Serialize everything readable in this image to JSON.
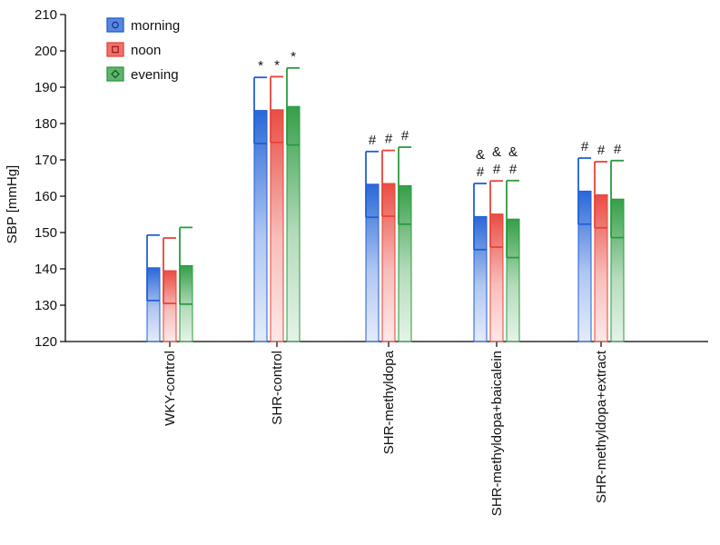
{
  "chart_data": {
    "type": "bar",
    "title": "",
    "xlabel": "",
    "ylabel": "SBP [mmHg]",
    "ylim": [
      120,
      210
    ],
    "yticks": [
      120,
      130,
      140,
      150,
      160,
      170,
      180,
      190,
      200,
      210
    ],
    "categories": [
      "WKY-control",
      "SHR-control",
      "SHR-methyldopa",
      "SHR-methyldopa+baicalein",
      "SHR-methyldopa+extract"
    ],
    "series": [
      {
        "name": "morning",
        "color": "#1f5fd6",
        "marker": "circle",
        "values": [
          140.3,
          183.6,
          163.3,
          154.4,
          161.4
        ],
        "err_low": [
          131.3,
          174.5,
          154.2,
          145.3,
          152.3
        ],
        "err_high": [
          149.3,
          192.7,
          172.3,
          163.5,
          170.5
        ]
      },
      {
        "name": "noon",
        "color": "#e8433a",
        "marker": "square",
        "values": [
          139.5,
          183.8,
          163.5,
          155.1,
          160.4
        ],
        "err_low": [
          130.5,
          174.8,
          154.5,
          146.0,
          151.3
        ],
        "err_high": [
          148.5,
          192.9,
          172.6,
          164.2,
          169.5
        ]
      },
      {
        "name": "evening",
        "color": "#2a9a3e",
        "marker": "diamond",
        "values": [
          140.9,
          184.7,
          162.9,
          153.7,
          159.2
        ],
        "err_low": [
          130.3,
          174.1,
          152.3,
          143.1,
          148.6
        ],
        "err_high": [
          151.4,
          195.3,
          173.5,
          164.3,
          169.8
        ]
      }
    ],
    "annotations": [
      {
        "category": 1,
        "series": 0,
        "lines": [
          "*"
        ]
      },
      {
        "category": 1,
        "series": 1,
        "lines": [
          "*"
        ]
      },
      {
        "category": 1,
        "series": 2,
        "lines": [
          "*"
        ]
      },
      {
        "category": 2,
        "series": 0,
        "lines": [
          "#"
        ]
      },
      {
        "category": 2,
        "series": 1,
        "lines": [
          "#"
        ]
      },
      {
        "category": 2,
        "series": 2,
        "lines": [
          "#"
        ]
      },
      {
        "category": 3,
        "series": 0,
        "lines": [
          "&",
          "#"
        ]
      },
      {
        "category": 3,
        "series": 1,
        "lines": [
          "&",
          "#"
        ]
      },
      {
        "category": 3,
        "series": 2,
        "lines": [
          "&",
          "#"
        ]
      },
      {
        "category": 4,
        "series": 0,
        "lines": [
          "#"
        ]
      },
      {
        "category": 4,
        "series": 1,
        "lines": [
          "#"
        ]
      },
      {
        "category": 4,
        "series": 2,
        "lines": [
          "#"
        ]
      }
    ],
    "legend": {
      "position": "top-left"
    }
  }
}
